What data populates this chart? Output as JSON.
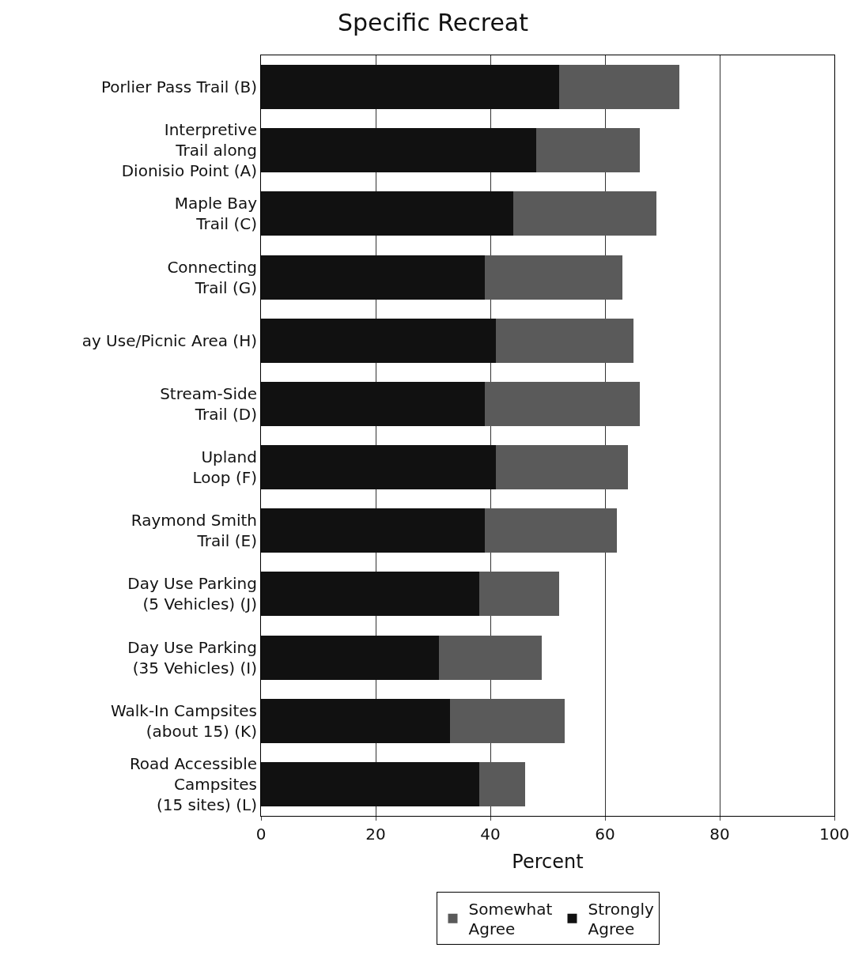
{
  "chart_data": {
    "type": "bar",
    "title": "Specific Recreat",
    "orientation": "horizontal",
    "stacked": true,
    "categories": [
      "Porlier Pass Trail (B)",
      "Interpretive\nTrail along\nDionisio Point (A)",
      "Maple Bay\nTrail (C)",
      "Connecting\nTrail (G)",
      "ay Use/Picnic Area (H)",
      "Stream-Side\nTrail (D)",
      "Upland\nLoop (F)",
      "Raymond Smith\nTrail (E)",
      "Day Use Parking\n(5 Vehicles) (J)",
      "Day Use Parking\n(35 Vehicles) (I)",
      "Walk-In Campsites\n(about 15) (K)",
      "Road Accessible\nCampsites\n(15 sites) (L)"
    ],
    "series": [
      {
        "name": "Strongly Agree",
        "color": "#111111",
        "values": [
          52,
          48,
          44,
          39,
          41,
          39,
          41,
          39,
          38,
          31,
          33,
          38
        ]
      },
      {
        "name": "Somewhat Agree",
        "color": "#5a5a5a",
        "values": [
          21,
          18,
          25,
          24,
          24,
          27,
          23,
          23,
          14,
          18,
          20,
          8
        ]
      }
    ],
    "xlabel": "Percent",
    "xlim": [
      0,
      100
    ],
    "xticks": [
      0,
      20,
      40,
      60,
      80,
      100
    ],
    "grid": "x",
    "legend": "bottom"
  }
}
